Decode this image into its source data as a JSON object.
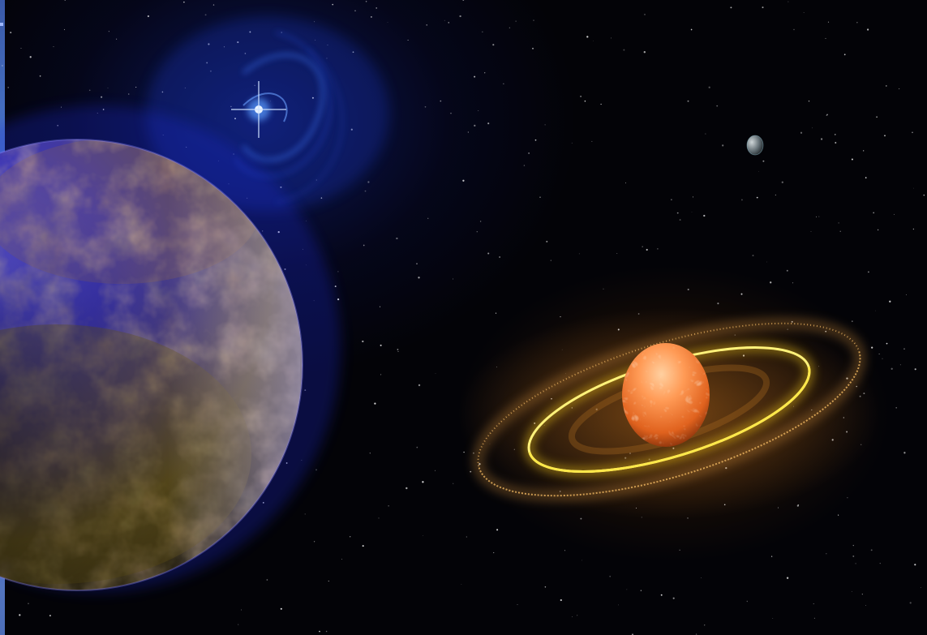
{
  "scene": {
    "colors": {
      "space": "#030307",
      "blue_glow": "#1a3ad0",
      "ring_gold": "#ffd21a",
      "ring_dust": "#e0a040",
      "ringed_planet": "#f07a2a",
      "large_planet_blue": "#3a35b0",
      "large_planet_ochre": "#b8862a"
    },
    "objects": [
      "large-blue-planet",
      "blue-nebula-star",
      "ringed-orange-planet",
      "small-distant-moon",
      "starfield"
    ]
  }
}
